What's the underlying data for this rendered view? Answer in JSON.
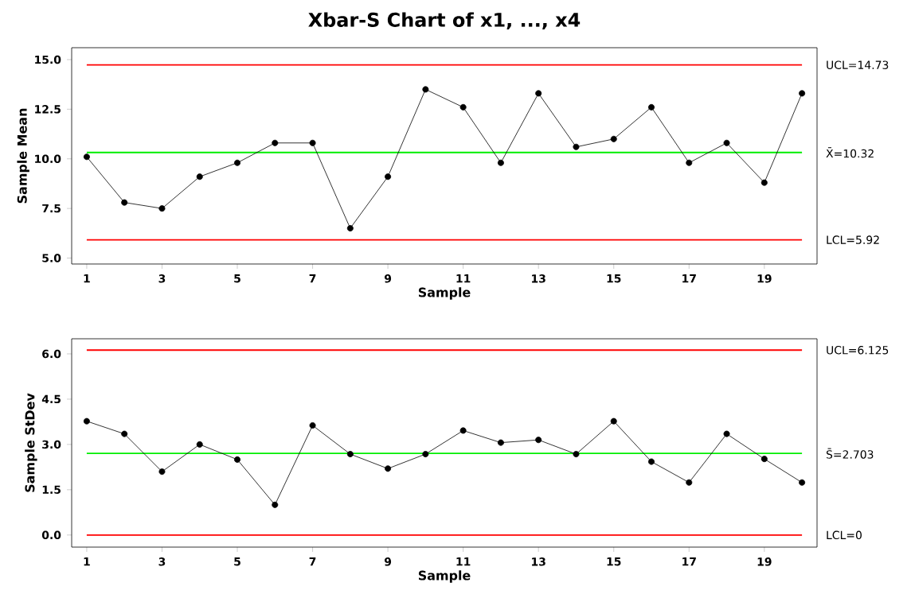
{
  "chart_data": [
    {
      "type": "line",
      "title": "Xbar-S Chart of x1, ..., x4",
      "xlabel": "Sample",
      "ylabel": "Sample Mean",
      "x": [
        1,
        2,
        3,
        4,
        5,
        6,
        7,
        8,
        9,
        10,
        11,
        12,
        13,
        14,
        15,
        16,
        17,
        18,
        19,
        20
      ],
      "series": [
        {
          "color": "#000000",
          "values": [
            10.1,
            7.8,
            7.5,
            9.1,
            9.8,
            10.8,
            10.8,
            6.5,
            9.1,
            13.5,
            12.6,
            9.8,
            13.3,
            10.6,
            11.0,
            12.6,
            9.8,
            10.8,
            8.8,
            13.3
          ]
        }
      ],
      "marker": "circle",
      "grid": false,
      "xlim": [
        0.6,
        20.4
      ],
      "xticks": [
        1,
        3,
        5,
        7,
        9,
        11,
        13,
        15,
        17,
        19
      ],
      "ylim": [
        4.7,
        15.6
      ],
      "yticks": [
        {
          "value": 5,
          "label": "5.0"
        },
        {
          "value": 7.5,
          "label": "7.5"
        },
        {
          "value": 10,
          "label": "10.0"
        },
        {
          "value": 12.5,
          "label": "12.5"
        },
        {
          "value": 15,
          "label": "15.0"
        }
      ],
      "ref_lines": [
        {
          "axis": "y",
          "value": 14.73,
          "label": "UCL=14.73",
          "color": "#ff0000"
        },
        {
          "axis": "y",
          "value": 10.32,
          "label": "X̄=10.32",
          "color": "#00ee00"
        },
        {
          "axis": "y",
          "value": 5.92,
          "label": "LCL=5.92",
          "color": "#ff0000"
        }
      ]
    },
    {
      "type": "line",
      "xlabel": "Sample",
      "ylabel": "Sample StDev",
      "x": [
        1,
        2,
        3,
        4,
        5,
        6,
        7,
        8,
        9,
        10,
        11,
        12,
        13,
        14,
        15,
        16,
        17,
        18,
        19,
        20
      ],
      "series": [
        {
          "color": "#000000",
          "values": [
            3.77,
            3.35,
            2.1,
            3.0,
            2.5,
            1.0,
            3.63,
            2.68,
            2.2,
            2.68,
            3.46,
            3.06,
            3.15,
            2.68,
            3.77,
            2.43,
            1.74,
            3.35,
            2.52,
            1.74
          ]
        }
      ],
      "marker": "circle",
      "grid": false,
      "xlim": [
        0.6,
        20.4
      ],
      "xticks": [
        1,
        3,
        5,
        7,
        9,
        11,
        13,
        15,
        17,
        19
      ],
      "ylim": [
        -0.4,
        6.5
      ],
      "yticks": [
        {
          "value": 0,
          "label": "0.0"
        },
        {
          "value": 1.5,
          "label": "1.5"
        },
        {
          "value": 3,
          "label": "3.0"
        },
        {
          "value": 4.5,
          "label": "4.5"
        },
        {
          "value": 6,
          "label": "6.0"
        }
      ],
      "ref_lines": [
        {
          "axis": "y",
          "value": 6.125,
          "label": "UCL=6.125",
          "color": "#ff0000"
        },
        {
          "axis": "y",
          "value": 2.703,
          "label": "S̄=2.703",
          "color": "#00ee00"
        },
        {
          "axis": "y",
          "value": 0,
          "label": "LCL=0",
          "color": "#ff0000"
        }
      ]
    }
  ]
}
